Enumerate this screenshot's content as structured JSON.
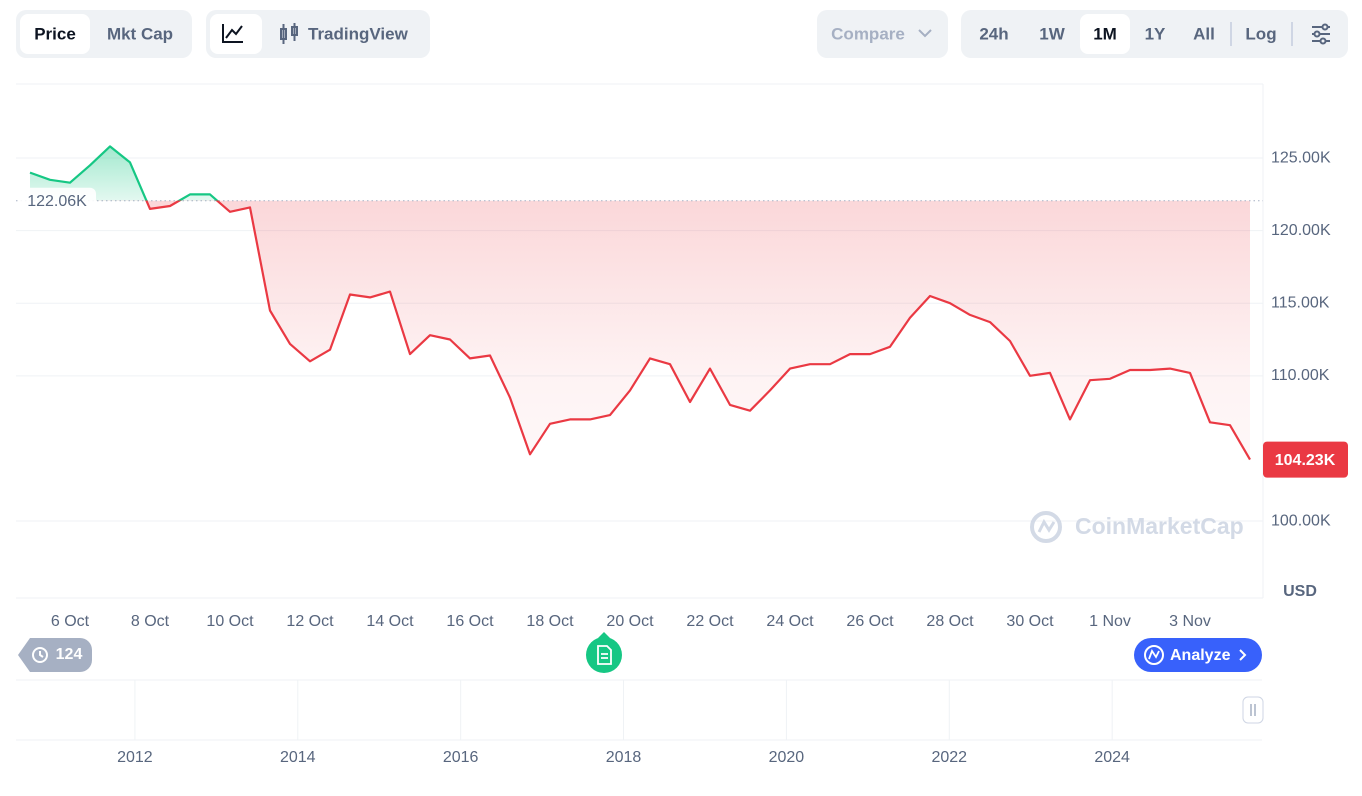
{
  "toolbar": {
    "chart_type": [
      "Price",
      "Mkt Cap"
    ],
    "view": "TradingView",
    "compare": "Compare",
    "ranges": [
      "24h",
      "1W",
      "1M",
      "1Y",
      "All"
    ],
    "active_range": "1M",
    "log": "Log"
  },
  "watermark": "CoinMarketCap",
  "footer": {
    "history_count": "124",
    "analyze": "Analyze"
  },
  "chart_data": {
    "type": "line",
    "categories": [
      null,
      null,
      "6 Oct",
      null,
      null,
      null,
      "8 Oct",
      null,
      null,
      null,
      "10 Oct",
      null,
      null,
      null,
      "12 Oct",
      null,
      null,
      null,
      "14 Oct",
      null,
      null,
      null,
      "16 Oct",
      null,
      null,
      null,
      "18 Oct",
      null,
      null,
      null,
      "20 Oct",
      null,
      null,
      null,
      "22 Oct",
      null,
      null,
      null,
      "24 Oct",
      null,
      null,
      null,
      "26 Oct",
      null,
      null,
      null,
      "28 Oct",
      null,
      null,
      null,
      "30 Oct",
      null,
      null,
      null,
      "1 Nov",
      null,
      null,
      null,
      "3 Nov",
      null,
      null,
      null
    ],
    "values": [
      124000,
      123500,
      123300,
      124500,
      125800,
      124700,
      121500,
      121700,
      122500,
      122500,
      121300,
      121600,
      114500,
      112200,
      111000,
      111800,
      115600,
      115400,
      115800,
      111500,
      112800,
      112500,
      111200,
      111400,
      108500,
      104600,
      106700,
      107000,
      107000,
      107300,
      109000,
      111200,
      110800,
      108200,
      110500,
      108000,
      107600,
      109000,
      110500,
      110800,
      110800,
      111500,
      111500,
      112000,
      114000,
      115500,
      115000,
      114200,
      113700,
      112400,
      110000,
      110200,
      107000,
      109700,
      109800,
      110400,
      110400,
      110500,
      110200,
      106800,
      106600,
      104230
    ],
    "last_label": "104.23K",
    "baseline": {
      "value": 122060,
      "label": "122.06K"
    },
    "up_color": "#16c784",
    "down_color": "#ea3943",
    "ylim": [
      94700,
      130100
    ],
    "yticks": [
      {
        "value": 100000,
        "label": "100.00K"
      },
      {
        "value": 110000,
        "label": "110.00K"
      },
      {
        "value": 115000,
        "label": "115.00K"
      },
      {
        "value": 120000,
        "label": "120.00K"
      },
      {
        "value": 125000,
        "label": "125.00K"
      }
    ],
    "y_unit": "USD",
    "grid": true,
    "navigator": {
      "xlim": [
        2010.54,
        2025.84
      ],
      "xticks": [
        2012,
        2014,
        2016,
        2018,
        2020,
        2022,
        2024
      ]
    }
  }
}
